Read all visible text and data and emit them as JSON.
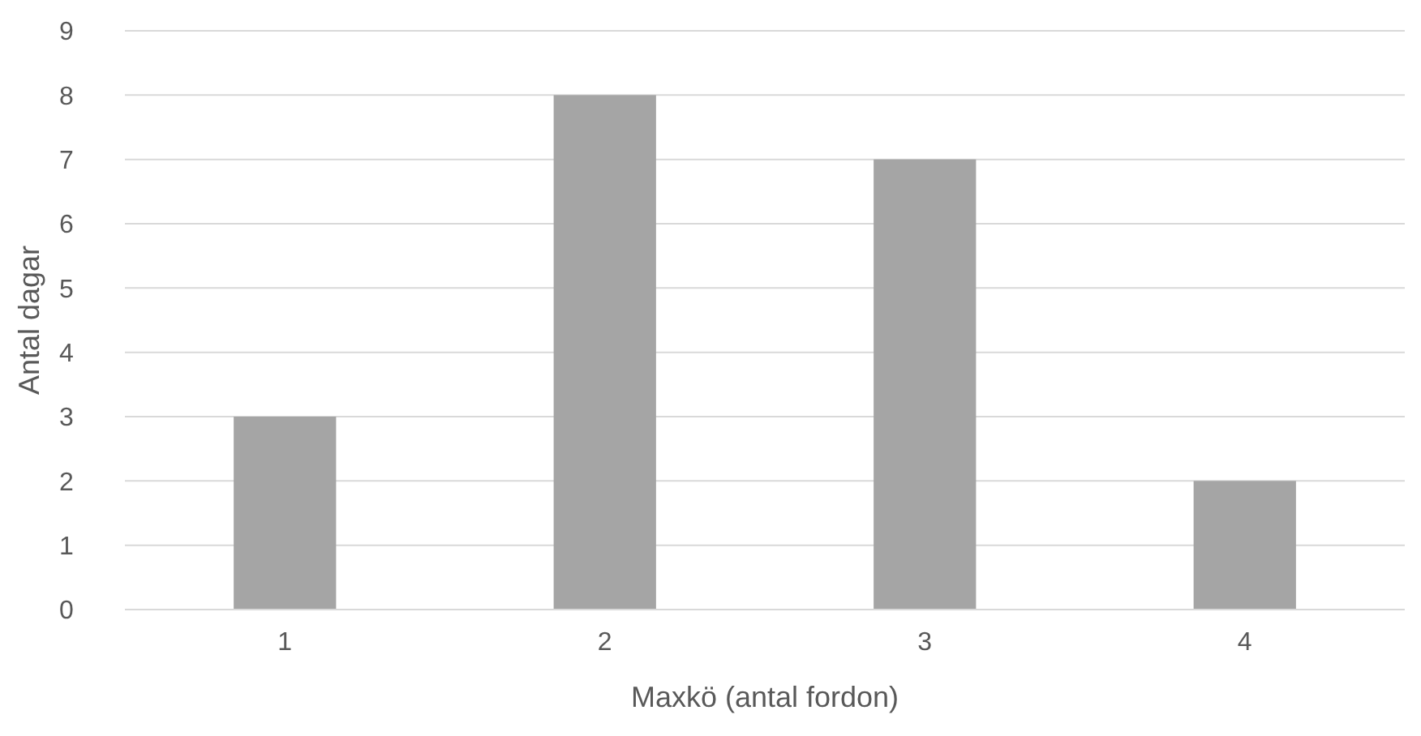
{
  "chart_data": {
    "type": "bar",
    "xlabel": "Maxkö (antal fordon)",
    "ylabel": "Antal dagar",
    "categories": [
      "1",
      "2",
      "3",
      "4"
    ],
    "values": [
      3,
      8,
      7,
      2
    ],
    "color": "#a5a5a5",
    "ylim": [
      0,
      9
    ],
    "yticks": [
      0,
      1,
      2,
      3,
      4,
      5,
      6,
      7,
      8,
      9
    ],
    "grid": "y"
  }
}
